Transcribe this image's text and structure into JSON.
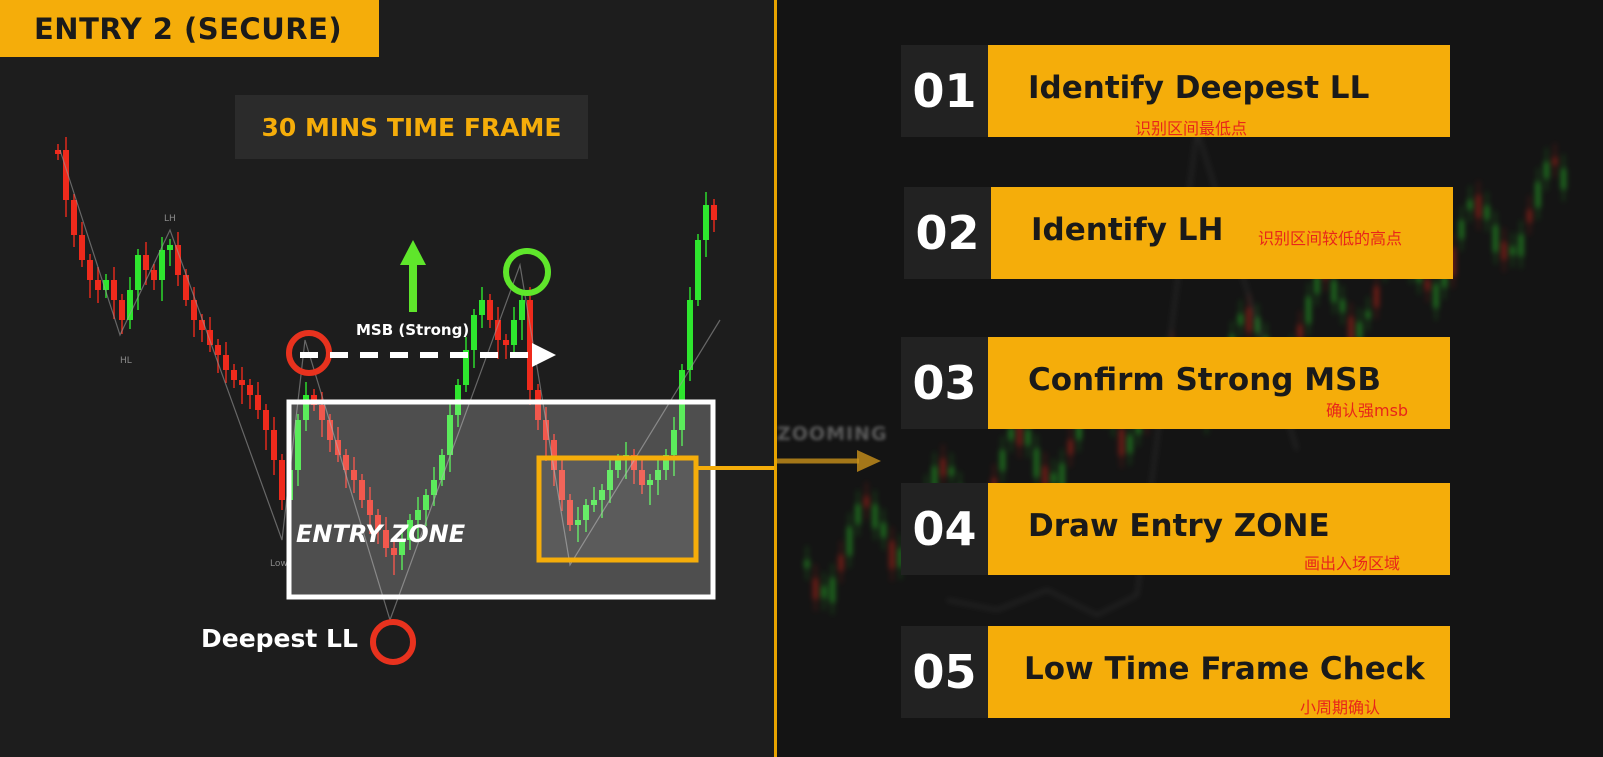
{
  "header": {
    "title": "ENTRY 2 (SECURE)"
  },
  "timeframe": {
    "label": "30 MINS TIME FRAME"
  },
  "annotations": {
    "msb": "MSB (Strong)",
    "entry_zone": "ENTRY ZONE",
    "deepest_ll": "Deepest LL",
    "zooming": "ZOOMING",
    "swing_labels": {
      "lh": "LH",
      "hl": "HL",
      "low": "Low"
    }
  },
  "colors": {
    "accent": "#f5ad0a",
    "bull_candle": "#2ee62e",
    "bear_candle": "#ee2a1c",
    "red_marker": "#e8321e",
    "green_marker": "#5fe62b",
    "subtitle_red": "#e8261a"
  },
  "steps": [
    {
      "number": "01",
      "title": "Identify Deepest LL",
      "subtitle": "识别区间最低点"
    },
    {
      "number": "02",
      "title": "Identify LH",
      "subtitle": "识别区间较低的高点"
    },
    {
      "number": "03",
      "title": "Confirm Strong MSB",
      "subtitle": "确认强msb"
    },
    {
      "number": "04",
      "title": "Draw Entry ZONE",
      "subtitle": "画出入场区域"
    },
    {
      "number": "05",
      "title": "Low Time Frame Check",
      "subtitle": "小周期确认"
    }
  ],
  "icons": {
    "up_arrow": "up-arrow-icon",
    "right_arrow": "dashed-right-arrow-icon",
    "zoom_arrow": "zoom-arrow-icon"
  }
}
